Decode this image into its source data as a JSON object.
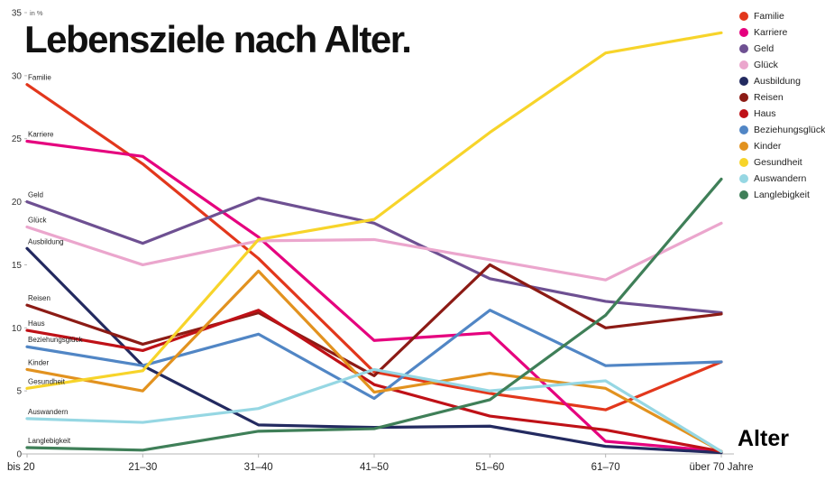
{
  "title": "Lebensziele nach Alter.",
  "chart_data": {
    "type": "line",
    "title": "Lebensziele nach Alter.",
    "ylabel": "in %",
    "xlabel": "Alter",
    "ylim": [
      0,
      35
    ],
    "yticks": [
      0,
      5,
      10,
      15,
      20,
      25,
      30,
      35
    ],
    "grid": false,
    "legend_position": "right",
    "categories": [
      "bis 20",
      "21–30",
      "31–40",
      "41–50",
      "51–60",
      "61–70",
      "über 70 Jahre"
    ],
    "series": [
      {
        "name": "Familie",
        "color": "#e2371c",
        "values": [
          29.3,
          23.0,
          15.5,
          6.5,
          4.8,
          3.5,
          7.3
        ]
      },
      {
        "name": "Karriere",
        "color": "#e5007e",
        "values": [
          24.8,
          23.6,
          17.2,
          9.0,
          9.6,
          1.0,
          0.2
        ]
      },
      {
        "name": "Geld",
        "color": "#6e5092",
        "values": [
          20.0,
          16.7,
          20.3,
          18.3,
          13.9,
          12.1,
          11.2
        ]
      },
      {
        "name": "Glück",
        "color": "#eba6cd",
        "values": [
          18.0,
          15.0,
          16.9,
          17.0,
          15.4,
          13.8,
          18.3
        ]
      },
      {
        "name": "Ausbildung",
        "color": "#232a60",
        "values": [
          16.3,
          7.0,
          2.3,
          2.1,
          2.2,
          0.6,
          0.1
        ]
      },
      {
        "name": "Reisen",
        "color": "#8c1b15",
        "values": [
          11.8,
          8.7,
          11.2,
          6.2,
          15.0,
          10.0,
          11.1
        ]
      },
      {
        "name": "Haus",
        "color": "#bf1117",
        "values": [
          9.8,
          8.2,
          11.4,
          5.5,
          3.0,
          1.9,
          0.2
        ]
      },
      {
        "name": "Beziehungsglück",
        "color": "#5186c5",
        "values": [
          8.5,
          7.0,
          9.5,
          4.4,
          11.4,
          7.0,
          7.3
        ]
      },
      {
        "name": "Kinder",
        "color": "#e2921f",
        "values": [
          6.7,
          5.0,
          14.5,
          4.9,
          6.4,
          5.2,
          0.2
        ]
      },
      {
        "name": "Gesundheit",
        "color": "#f7d42a",
        "values": [
          5.2,
          6.6,
          17.0,
          18.6,
          25.5,
          31.8,
          33.4
        ]
      },
      {
        "name": "Auswandern",
        "color": "#96d7e3",
        "values": [
          2.8,
          2.5,
          3.6,
          6.7,
          5.0,
          5.8,
          0.2
        ]
      },
      {
        "name": "Langlebigkeit",
        "color": "#3f7f58",
        "values": [
          0.5,
          0.3,
          1.8,
          2.0,
          4.3,
          11.0,
          21.8
        ]
      }
    ]
  }
}
